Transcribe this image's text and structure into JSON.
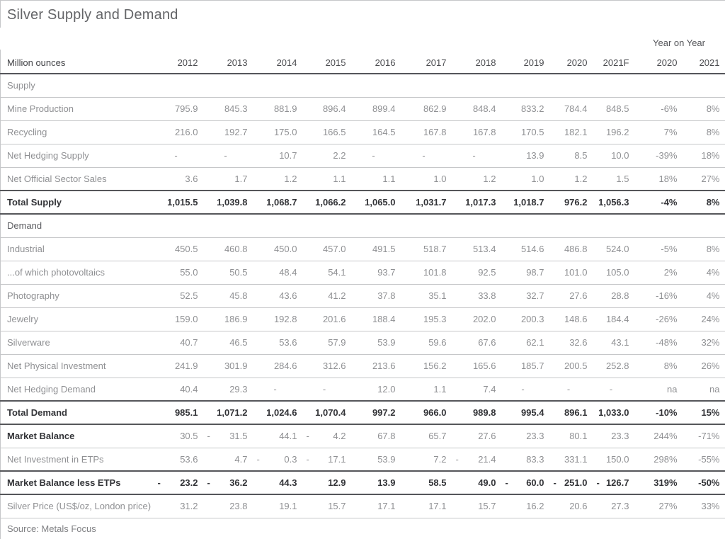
{
  "chart_data": {
    "type": "table",
    "title": "Silver Supply and Demand",
    "unit_label": "Million ounces",
    "group_header": {
      "label": "Year on Year",
      "spans": [
        "2020",
        "2021"
      ]
    },
    "columns": [
      "2012",
      "2013",
      "2014",
      "2015",
      "2016",
      "2017",
      "2018",
      "2019",
      "2020",
      "2021F",
      "2020",
      "2021"
    ],
    "rows": [
      {
        "label": "Supply",
        "type": "section",
        "shade": "light",
        "dark_bottom": false,
        "cells": []
      },
      {
        "label": "Mine Production",
        "type": "data",
        "dark_bottom": false,
        "cells": [
          "795.9",
          "845.3",
          "881.9",
          "896.4",
          "899.4",
          "862.9",
          "848.4",
          "833.2",
          "784.4",
          "848.5",
          "-6%",
          "8%"
        ]
      },
      {
        "label": "Recycling",
        "type": "data",
        "dark_bottom": false,
        "cells": [
          "216.0",
          "192.7",
          "175.0",
          "166.5",
          "164.5",
          "167.8",
          "167.8",
          "170.5",
          "182.1",
          "196.2",
          "7%",
          "8%"
        ]
      },
      {
        "label": "Net Hedging Supply",
        "type": "data",
        "dark_bottom": false,
        "cells": [
          "-",
          "-",
          "10.7",
          "2.2",
          "-",
          "-",
          "-",
          "13.9",
          "8.5",
          "10.0",
          "-39%",
          "18%"
        ]
      },
      {
        "label": "Net Official Sector Sales",
        "type": "data",
        "dark_bottom": true,
        "cells": [
          "3.6",
          "1.7",
          "1.2",
          "1.1",
          "1.1",
          "1.0",
          "1.2",
          "1.0",
          "1.2",
          "1.5",
          "18%",
          "27%"
        ]
      },
      {
        "label": "Total Supply",
        "type": "total",
        "dark_bottom": true,
        "cells": [
          "1,015.5",
          "1,039.8",
          "1,068.7",
          "1,066.2",
          "1,065.0",
          "1,031.7",
          "1,017.3",
          "1,018.7",
          "976.2",
          "1,056.3",
          "-4%",
          "8%"
        ]
      },
      {
        "label": "Demand",
        "type": "section",
        "shade": "dark",
        "dark_bottom": false,
        "cells": []
      },
      {
        "label": "Industrial",
        "type": "data",
        "dark_bottom": false,
        "cells": [
          "450.5",
          "460.8",
          "450.0",
          "457.0",
          "491.5",
          "518.7",
          "513.4",
          "514.6",
          "486.8",
          "524.0",
          "-5%",
          "8%"
        ]
      },
      {
        "label": "...of which photovoltaics",
        "type": "data",
        "dark_bottom": false,
        "cells": [
          "55.0",
          "50.5",
          "48.4",
          "54.1",
          "93.7",
          "101.8",
          "92.5",
          "98.7",
          "101.0",
          "105.0",
          "2%",
          "4%"
        ]
      },
      {
        "label": "Photography",
        "type": "data",
        "dark_bottom": false,
        "cells": [
          "52.5",
          "45.8",
          "43.6",
          "41.2",
          "37.8",
          "35.1",
          "33.8",
          "32.7",
          "27.6",
          "28.8",
          "-16%",
          "4%"
        ]
      },
      {
        "label": "Jewelry",
        "type": "data",
        "dark_bottom": false,
        "cells": [
          "159.0",
          "186.9",
          "192.8",
          "201.6",
          "188.4",
          "195.3",
          "202.0",
          "200.3",
          "148.6",
          "184.4",
          "-26%",
          "24%"
        ]
      },
      {
        "label": "Silverware",
        "type": "data",
        "dark_bottom": false,
        "cells": [
          "40.7",
          "46.5",
          "53.6",
          "57.9",
          "53.9",
          "59.6",
          "67.6",
          "62.1",
          "32.6",
          "43.1",
          "-48%",
          "32%"
        ]
      },
      {
        "label": "Net Physical Investment",
        "type": "data",
        "dark_bottom": false,
        "cells": [
          "241.9",
          "301.9",
          "284.6",
          "312.6",
          "213.6",
          "156.2",
          "165.6",
          "185.7",
          "200.5",
          "252.8",
          "8%",
          "26%"
        ]
      },
      {
        "label": "Net Hedging Demand",
        "type": "data",
        "dark_bottom": true,
        "cells": [
          "40.4",
          "29.3",
          "-",
          "-",
          "12.0",
          "1.1",
          "7.4",
          "-",
          "-",
          "-",
          "na",
          "na"
        ]
      },
      {
        "label": "Total Demand",
        "type": "total",
        "dark_bottom": true,
        "cells": [
          "985.1",
          "1,071.2",
          "1,024.6",
          "1,070.4",
          "997.2",
          "966.0",
          "989.8",
          "995.4",
          "896.1",
          "1,033.0",
          "-10%",
          "15%"
        ]
      },
      {
        "label": "Market Balance",
        "type": "mixed",
        "dark_bottom": false,
        "cells": [
          "30.5",
          "-31.5",
          "44.1",
          "-4.2",
          "67.8",
          "65.7",
          "27.6",
          "23.3",
          "80.1",
          "23.3",
          "244%",
          "-71%"
        ]
      },
      {
        "label": "Net Investment in ETPs",
        "type": "data",
        "dark_bottom": true,
        "cells": [
          "53.6",
          "4.7",
          "-0.3",
          "-17.1",
          "53.9",
          "7.2",
          "-21.4",
          "83.3",
          "331.1",
          "150.0",
          "298%",
          "-55%"
        ]
      },
      {
        "label": "Market Balance less ETPs",
        "type": "total",
        "dark_bottom": true,
        "cells": [
          "-23.2",
          "-36.2",
          "44.3",
          "12.9",
          "13.9",
          "58.5",
          "49.0",
          "-60.0",
          "-251.0",
          "-126.7",
          "319%",
          "-50%"
        ]
      },
      {
        "label": "Silver Price (US$/oz, London price)",
        "type": "data",
        "dark_bottom": false,
        "cells": [
          "31.2",
          "23.8",
          "19.1",
          "15.7",
          "17.1",
          "17.1",
          "15.7",
          "16.2",
          "20.6",
          "27.3",
          "27%",
          "33%"
        ]
      }
    ],
    "source": "Source: Metals Focus"
  }
}
